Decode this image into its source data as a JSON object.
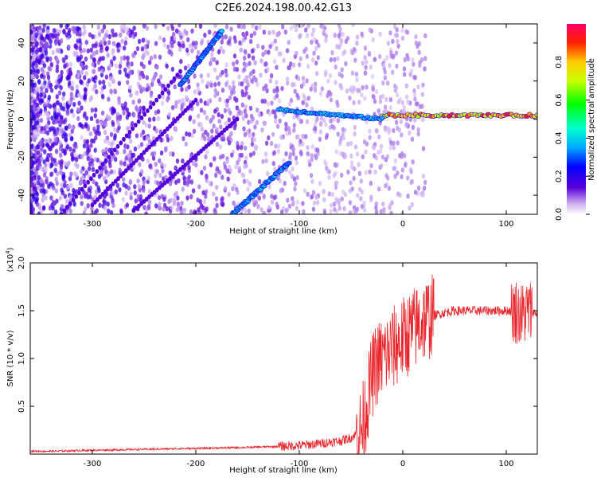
{
  "title": "C2E6.2024.198.00.42.G13",
  "colors": {
    "snr_line": "#e8252b",
    "axis": "#000000"
  },
  "chart_data": [
    {
      "type": "heatmap",
      "xlabel": "Height of straight line (km)",
      "ylabel": "Frequency (Hz)",
      "xlim": [
        -360,
        130
      ],
      "ylim": [
        -50,
        50
      ],
      "xticks": [
        -300,
        -200,
        -100,
        0,
        100
      ],
      "xtick_labels": [
        "-300",
        "-200",
        "-100",
        "0",
        "100"
      ],
      "yticks": [
        -40,
        -20,
        0,
        20,
        40
      ],
      "ytick_labels": [
        "-40",
        "-20",
        "0",
        "20",
        "40"
      ],
      "colorbar": {
        "label": "Normalized spectral amplitude",
        "range": [
          0,
          1
        ],
        "ticks": [
          0.0,
          0.2,
          0.4,
          0.6,
          0.8
        ],
        "tick_labels": [
          "0.0",
          "0.2",
          "0.4",
          "0.6",
          "0.8"
        ]
      },
      "features": [
        {
          "name": "strong carrier",
          "x_range": [
            -20,
            130
          ],
          "freq_hz": 2,
          "amplitude": 0.9
        },
        {
          "name": "carrier onset",
          "x_range": [
            -120,
            -20
          ],
          "freq_hz_start": 5,
          "freq_hz_end": 0,
          "amplitude": 0.4
        },
        {
          "name": "upper branch",
          "x_range": [
            -215,
            -175
          ],
          "freq_hz_start": 18,
          "freq_hz_end": 46,
          "amplitude": 0.4
        },
        {
          "name": "lower branch",
          "x_range": [
            -165,
            -110
          ],
          "freq_hz_start": -50,
          "freq_hz_end": -23,
          "amplitude": 0.4
        }
      ]
    },
    {
      "type": "line",
      "xlabel": "Height of straight line (km)",
      "ylabel": "SNR (10 * v/v)",
      "scale_label": "(x10",
      "scale_exponent": "4",
      "scale_close": ")",
      "xlim": [
        -360,
        130
      ],
      "ylim": [
        0,
        2.0
      ],
      "xticks": [
        -300,
        -200,
        -100,
        0,
        100
      ],
      "xtick_labels": [
        "-300",
        "-200",
        "-100",
        "0",
        "100"
      ],
      "yticks": [
        0.5,
        1.0,
        1.5,
        2.0
      ],
      "ytick_labels": [
        "0.5",
        "1.0",
        "1.5",
        "2.0"
      ],
      "series": [
        {
          "color": "#e8252b",
          "x": [
            -360,
            -340,
            -300,
            -250,
            -200,
            -150,
            -120,
            -100,
            -80,
            -60,
            -50,
            -40,
            -35,
            -30,
            -25,
            -20,
            -15,
            -10,
            -5,
            0,
            10,
            20,
            30,
            40,
            50,
            60,
            70,
            80,
            90,
            100,
            110,
            115,
            120,
            130
          ],
          "y": [
            0.03,
            0.03,
            0.04,
            0.05,
            0.06,
            0.07,
            0.08,
            0.09,
            0.11,
            0.14,
            0.17,
            0.25,
            0.5,
            0.8,
            0.95,
            1.0,
            1.05,
            1.1,
            1.15,
            1.2,
            1.3,
            1.4,
            1.45,
            1.48,
            1.5,
            1.5,
            1.5,
            1.5,
            1.5,
            1.5,
            1.5,
            1.45,
            1.5,
            1.47
          ]
        }
      ]
    }
  ]
}
